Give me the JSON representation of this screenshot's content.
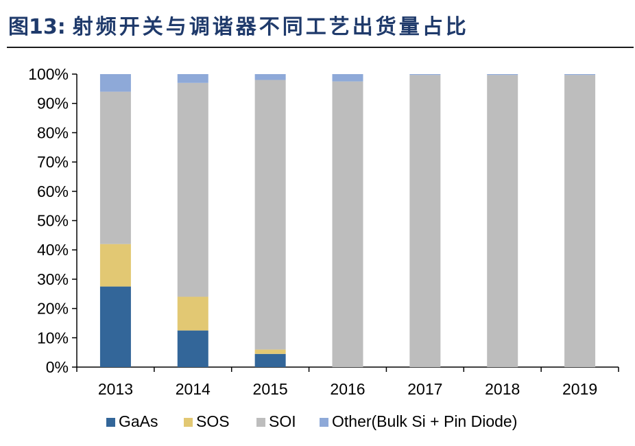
{
  "header": {
    "figure_label": "图13:",
    "title": "射频开关与调谐器不同工艺出货量占比"
  },
  "chart_data": {
    "type": "bar",
    "stacked": true,
    "categories": [
      "2013",
      "2014",
      "2015",
      "2016",
      "2017",
      "2018",
      "2019"
    ],
    "series": [
      {
        "name": "GaAs",
        "color": "#336699",
        "values": [
          27.5,
          12.5,
          4.5,
          0,
          0,
          0,
          0
        ]
      },
      {
        "name": "SOS",
        "color": "#e2c873",
        "values": [
          14.5,
          11.5,
          1.5,
          0,
          0,
          0,
          0
        ]
      },
      {
        "name": "SOI",
        "color": "#bdbdbd",
        "values": [
          52,
          73,
          92,
          97.5,
          99.7,
          99.7,
          99.7
        ]
      },
      {
        "name": "Other(Bulk Si + Pin Diode)",
        "color": "#8ea9d8",
        "values": [
          6,
          3,
          2,
          2.5,
          0.3,
          0.3,
          0.3
        ]
      }
    ],
    "y_ticks": [
      "0%",
      "10%",
      "20%",
      "30%",
      "40%",
      "50%",
      "60%",
      "70%",
      "80%",
      "90%",
      "100%"
    ],
    "ylim": [
      0,
      100
    ],
    "grid": false,
    "legend_position": "bottom"
  }
}
